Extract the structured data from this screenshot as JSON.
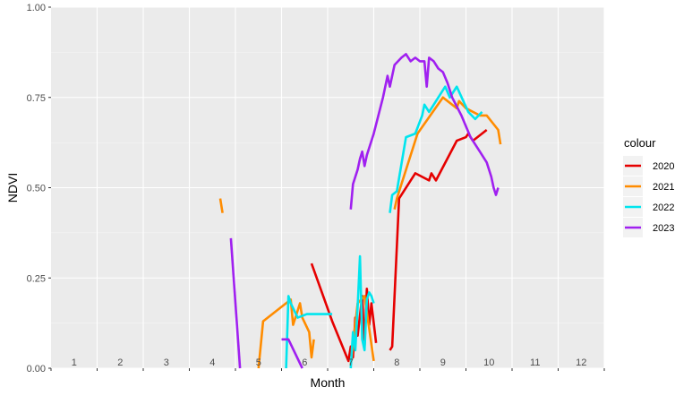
{
  "chart_data": {
    "type": "line",
    "xlabel": "Month",
    "ylabel": "NDVI",
    "xlim": [
      0.5,
      12.5
    ],
    "ylim": [
      0,
      1
    ],
    "x_ticks": [
      "1",
      "2",
      "3",
      "4",
      "5",
      "6",
      "7",
      "8",
      "9",
      "10",
      "11",
      "12"
    ],
    "y_ticks": [
      "0.00",
      "0.25",
      "0.50",
      "0.75",
      "1.00"
    ],
    "grid": true,
    "legend_title": "colour",
    "legend_position": "right",
    "series": [
      {
        "name": "2020",
        "color": "#e60000",
        "segments": [
          [
            [
              6.15,
              0.29
            ],
            [
              6.6,
              0.13
            ],
            [
              6.95,
              0.02
            ],
            [
              7.0,
              0.06
            ],
            [
              7.05,
              0.03
            ],
            [
              7.1,
              0.14
            ],
            [
              7.15,
              0.09
            ],
            [
              7.25,
              0.2
            ],
            [
              7.3,
              0.06
            ],
            [
              7.35,
              0.22
            ],
            [
              7.4,
              0.12
            ],
            [
              7.45,
              0.18
            ],
            [
              7.55,
              0.07
            ]
          ],
          [
            [
              7.85,
              0.05
            ],
            [
              7.9,
              0.06
            ],
            [
              8.05,
              0.47
            ],
            [
              8.4,
              0.54
            ],
            [
              8.7,
              0.52
            ],
            [
              8.75,
              0.54
            ],
            [
              8.85,
              0.52
            ],
            [
              9.3,
              0.63
            ],
            [
              9.5,
              0.64
            ],
            [
              9.55,
              0.65
            ],
            [
              9.65,
              0.63
            ],
            [
              9.95,
              0.66
            ]
          ]
        ]
      },
      {
        "name": "2021",
        "color": "#ff8c00",
        "segments": [
          [
            [
              4.17,
              0.47
            ],
            [
              4.22,
              0.43
            ]
          ],
          [
            [
              5.0,
              0.0
            ],
            [
              5.1,
              0.13
            ],
            [
              5.7,
              0.19
            ],
            [
              5.75,
              0.12
            ],
            [
              5.9,
              0.18
            ],
            [
              5.95,
              0.14
            ],
            [
              6.1,
              0.1
            ],
            [
              6.15,
              0.03
            ],
            [
              6.2,
              0.08
            ]
          ],
          [
            [
              7.0,
              0.01
            ],
            [
              7.15,
              0.18
            ],
            [
              7.3,
              0.2
            ],
            [
              7.4,
              0.11
            ],
            [
              7.5,
              0.02
            ]
          ],
          [
            [
              7.95,
              0.44
            ],
            [
              8.0,
              0.47
            ],
            [
              8.45,
              0.65
            ],
            [
              9.0,
              0.75
            ],
            [
              9.3,
              0.72
            ],
            [
              9.35,
              0.74
            ],
            [
              9.5,
              0.72
            ],
            [
              9.8,
              0.7
            ],
            [
              9.95,
              0.7
            ],
            [
              10.2,
              0.66
            ],
            [
              10.25,
              0.62
            ]
          ]
        ]
      },
      {
        "name": "2022",
        "color": "#00e5ee",
        "segments": [
          [
            [
              5.6,
              0.0
            ],
            [
              5.65,
              0.2
            ],
            [
              5.7,
              0.18
            ],
            [
              5.85,
              0.14
            ],
            [
              6.05,
              0.15
            ],
            [
              6.2,
              0.15
            ],
            [
              6.6,
              0.15
            ]
          ],
          [
            [
              7.0,
              0.0
            ],
            [
              7.05,
              0.1
            ],
            [
              7.1,
              0.05
            ],
            [
              7.15,
              0.17
            ],
            [
              7.2,
              0.31
            ],
            [
              7.25,
              0.08
            ],
            [
              7.3,
              0.05
            ],
            [
              7.35,
              0.19
            ],
            [
              7.4,
              0.21
            ],
            [
              7.45,
              0.2
            ],
            [
              7.5,
              0.18
            ]
          ],
          [
            [
              7.85,
              0.43
            ],
            [
              7.9,
              0.48
            ],
            [
              8.0,
              0.49
            ],
            [
              8.2,
              0.64
            ],
            [
              8.4,
              0.65
            ],
            [
              8.55,
              0.7
            ],
            [
              8.6,
              0.73
            ],
            [
              8.7,
              0.71
            ],
            [
              8.8,
              0.73
            ],
            [
              9.05,
              0.78
            ],
            [
              9.15,
              0.75
            ],
            [
              9.3,
              0.78
            ],
            [
              9.55,
              0.71
            ],
            [
              9.7,
              0.69
            ],
            [
              9.85,
              0.71
            ]
          ]
        ]
      },
      {
        "name": "2023",
        "color": "#a020f0",
        "segments": [
          [
            [
              4.4,
              0.36
            ],
            [
              4.6,
              0.0
            ]
          ],
          [
            [
              5.5,
              0.08
            ],
            [
              5.65,
              0.08
            ],
            [
              5.95,
              0.0
            ]
          ],
          [
            [
              7.0,
              0.44
            ],
            [
              7.05,
              0.51
            ],
            [
              7.15,
              0.55
            ],
            [
              7.2,
              0.58
            ],
            [
              7.25,
              0.6
            ],
            [
              7.3,
              0.56
            ],
            [
              7.35,
              0.59
            ],
            [
              7.5,
              0.65
            ],
            [
              7.7,
              0.75
            ],
            [
              7.8,
              0.81
            ],
            [
              7.85,
              0.78
            ],
            [
              7.95,
              0.84
            ],
            [
              8.1,
              0.86
            ],
            [
              8.2,
              0.87
            ],
            [
              8.3,
              0.85
            ],
            [
              8.4,
              0.86
            ],
            [
              8.5,
              0.85
            ],
            [
              8.6,
              0.85
            ],
            [
              8.65,
              0.78
            ],
            [
              8.7,
              0.86
            ],
            [
              8.8,
              0.85
            ],
            [
              8.9,
              0.83
            ],
            [
              9.0,
              0.82
            ],
            [
              9.1,
              0.79
            ],
            [
              9.2,
              0.75
            ],
            [
              9.4,
              0.7
            ],
            [
              9.6,
              0.64
            ],
            [
              9.8,
              0.6
            ],
            [
              9.95,
              0.57
            ],
            [
              10.05,
              0.53
            ],
            [
              10.1,
              0.5
            ],
            [
              10.15,
              0.48
            ],
            [
              10.2,
              0.5
            ]
          ]
        ]
      }
    ]
  }
}
